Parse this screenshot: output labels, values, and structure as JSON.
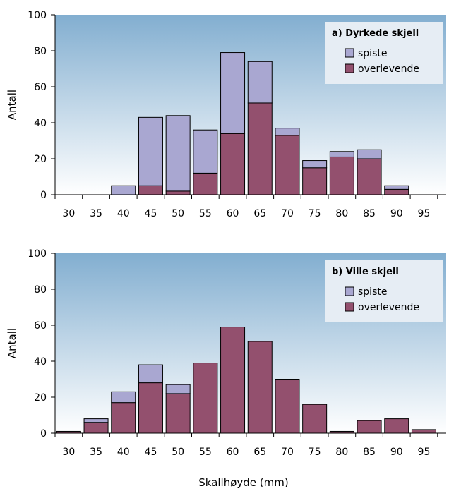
{
  "xlabel": "Skallhøyde (mm)",
  "colors": {
    "spiste": "#a9a7d1",
    "overlevende": "#93506e",
    "plot_bg_top": "#82aed0",
    "plot_bg_bottom": "#ffffff",
    "legend_bg": "#e6edf4"
  },
  "chart_data": [
    {
      "type": "bar",
      "stacked": true,
      "title": "a) Dyrkede skjell",
      "xlabel": "",
      "ylabel": "Antall",
      "ylim": [
        0,
        100
      ],
      "yticks": [
        0,
        20,
        40,
        60,
        80,
        100
      ],
      "categories": [
        "30",
        "35",
        "40",
        "45",
        "50",
        "55",
        "60",
        "65",
        "70",
        "75",
        "80",
        "85",
        "90",
        "95"
      ],
      "series": [
        {
          "name": "overlevende",
          "values": [
            0,
            0,
            0,
            5,
            2,
            12,
            34,
            51,
            33,
            15,
            21,
            20,
            3,
            0
          ]
        },
        {
          "name": "spiste",
          "values": [
            0,
            0,
            5,
            38,
            42,
            24,
            45,
            23,
            4,
            4,
            3,
            5,
            2,
            0
          ]
        }
      ],
      "legend": {
        "position": "top-right",
        "entries": [
          "spiste",
          "overlevende"
        ]
      }
    },
    {
      "type": "bar",
      "stacked": true,
      "title": "b) Ville skjell",
      "xlabel": "Skallhøyde (mm)",
      "ylabel": "Antall",
      "ylim": [
        0,
        100
      ],
      "yticks": [
        0,
        20,
        40,
        60,
        80,
        100
      ],
      "categories": [
        "30",
        "35",
        "40",
        "45",
        "50",
        "55",
        "60",
        "65",
        "70",
        "75",
        "80",
        "85",
        "90",
        "95"
      ],
      "series": [
        {
          "name": "overlevende",
          "values": [
            1,
            6,
            17,
            28,
            22,
            39,
            59,
            51,
            30,
            16,
            1,
            7,
            8,
            2
          ]
        },
        {
          "name": "spiste",
          "values": [
            0,
            2,
            6,
            10,
            5,
            0,
            0,
            0,
            0,
            0,
            0,
            0,
            0,
            0
          ]
        }
      ],
      "legend": {
        "position": "top-right",
        "entries": [
          "spiste",
          "overlevende"
        ]
      }
    }
  ]
}
